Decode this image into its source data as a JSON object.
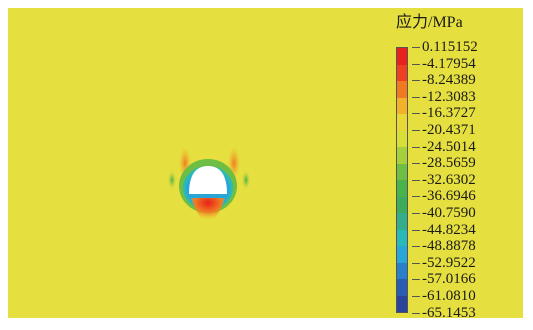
{
  "legend": {
    "title": "应力/MPa",
    "ticks": [
      "0.115152",
      "-4.17954",
      "-8.24389",
      "-12.3083",
      "-16.3727",
      "-20.4371",
      "-24.5014",
      "-28.5659",
      "-32.6302",
      "-36.6946",
      "-40.7590",
      "-44.8234",
      "-48.8878",
      "-52.9522",
      "-57.0166",
      "-61.0810",
      "-65.1453"
    ],
    "colors": [
      "#e8211c",
      "#ee4020",
      "#f07a22",
      "#f3b029",
      "#e7d838",
      "#d8de38",
      "#a6cf3c",
      "#6dbe42",
      "#49b34b",
      "#3cac5a",
      "#33ad8a",
      "#2bb8b8",
      "#29a6d8",
      "#2a7fc8",
      "#2a5cb2",
      "#2a449c"
    ]
  },
  "field": {
    "background_color": "#e5df3f"
  }
}
